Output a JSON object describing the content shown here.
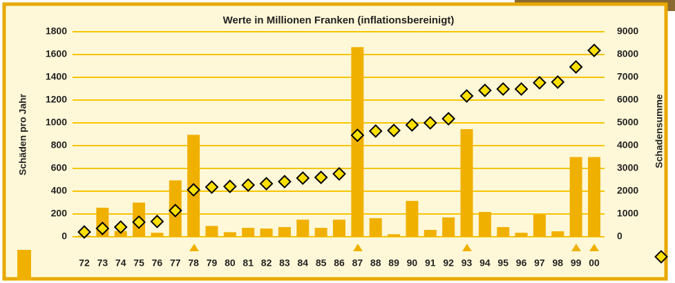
{
  "chart_data": {
    "type": "bar",
    "title": "Werte in Millionen Franken (inflationsbereinigt)",
    "y_label": "Schäden pro Jahr",
    "y2_label": "Schadensumme",
    "categories": [
      "72",
      "73",
      "74",
      "75",
      "76",
      "77",
      "78",
      "79",
      "80",
      "81",
      "82",
      "83",
      "84",
      "85",
      "86",
      "87",
      "88",
      "89",
      "90",
      "91",
      "92",
      "93",
      "94",
      "95",
      "96",
      "97",
      "98",
      "99",
      "00"
    ],
    "series": [
      {
        "type": "bar",
        "color": "#f0b000",
        "values": [
          10,
          255,
          50,
          300,
          35,
          495,
          895,
          95,
          40,
          78,
          72,
          85,
          150,
          78,
          150,
          1665,
          163,
          22,
          315,
          60,
          170,
          945,
          218,
          85,
          35,
          195,
          48,
          700,
          700
        ]
      },
      {
        "type": "scatter",
        "axis": "y2",
        "color": "#ffe000",
        "values": [
          210,
          365,
          425,
          640,
          670,
          1150,
          2060,
          2180,
          2210,
          2270,
          2330,
          2420,
          2575,
          2605,
          2760,
          4455,
          4640,
          4665,
          4910,
          5000,
          5180,
          6180,
          6425,
          6485,
          6485,
          6760,
          6790,
          7455,
          8180
        ]
      }
    ],
    "ylim": [
      0,
      1800
    ],
    "yticks": [
      0,
      200,
      400,
      600,
      800,
      1000,
      1200,
      1400,
      1600,
      1800
    ],
    "y2lim": [
      0,
      9000
    ],
    "y2ticks": [
      0,
      1000,
      2000,
      3000,
      4000,
      5000,
      6000,
      7000,
      8000,
      9000
    ],
    "grid": true
  }
}
